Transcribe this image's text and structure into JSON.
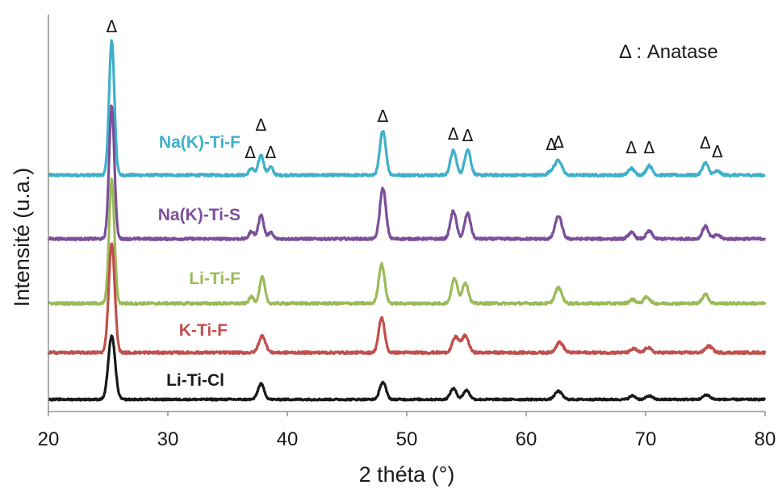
{
  "chart_data": {
    "type": "line",
    "xlabel": "2 théta (°)",
    "ylabel": "Intensité (u.a.)",
    "xlim": [
      20,
      80
    ],
    "xticks": [
      20,
      30,
      40,
      50,
      60,
      70,
      80
    ],
    "grid": false,
    "annotation": "Δ : Anatase",
    "phase_marker": "Δ",
    "phase_peaks_2theta": [
      25.3,
      36.9,
      37.8,
      38.6,
      48.0,
      53.9,
      55.1,
      62.1,
      62.7,
      68.8,
      70.3,
      75.0,
      76.0
    ],
    "series": [
      {
        "name": "Na(K)-Ti-F",
        "color": "#3fb0c9",
        "baseline_offset": 4,
        "peaks": [
          {
            "x": 25.3,
            "height": 1.0,
            "width": 0.22
          },
          {
            "x": 37.0,
            "height": 0.05,
            "width": 0.2
          },
          {
            "x": 37.8,
            "height": 0.15,
            "width": 0.22
          },
          {
            "x": 38.6,
            "height": 0.06,
            "width": 0.2
          },
          {
            "x": 48.0,
            "height": 0.33,
            "width": 0.25
          },
          {
            "x": 53.9,
            "height": 0.18,
            "width": 0.25
          },
          {
            "x": 55.1,
            "height": 0.19,
            "width": 0.25
          },
          {
            "x": 62.1,
            "height": 0.03,
            "width": 0.25
          },
          {
            "x": 62.7,
            "height": 0.11,
            "width": 0.28
          },
          {
            "x": 68.8,
            "height": 0.05,
            "width": 0.25
          },
          {
            "x": 70.3,
            "height": 0.07,
            "width": 0.25
          },
          {
            "x": 75.0,
            "height": 0.09,
            "width": 0.25
          },
          {
            "x": 76.0,
            "height": 0.03,
            "width": 0.25
          }
        ]
      },
      {
        "name": "Na(K)-Ti-S",
        "color": "#7b4f9a",
        "baseline_offset": 3,
        "peaks": [
          {
            "x": 25.3,
            "height": 1.05,
            "width": 0.22
          },
          {
            "x": 37.0,
            "height": 0.06,
            "width": 0.2
          },
          {
            "x": 37.8,
            "height": 0.19,
            "width": 0.22
          },
          {
            "x": 38.6,
            "height": 0.05,
            "width": 0.2
          },
          {
            "x": 48.0,
            "height": 0.4,
            "width": 0.25
          },
          {
            "x": 53.9,
            "height": 0.22,
            "width": 0.25
          },
          {
            "x": 55.1,
            "height": 0.2,
            "width": 0.25
          },
          {
            "x": 62.7,
            "height": 0.18,
            "width": 0.28
          },
          {
            "x": 68.8,
            "height": 0.05,
            "width": 0.25
          },
          {
            "x": 70.3,
            "height": 0.06,
            "width": 0.25
          },
          {
            "x": 75.0,
            "height": 0.1,
            "width": 0.25
          },
          {
            "x": 76.0,
            "height": 0.03,
            "width": 0.25
          }
        ]
      },
      {
        "name": "Li-Ti-F",
        "color": "#9bbb59",
        "baseline_offset": 2,
        "peaks": [
          {
            "x": 25.3,
            "height": 0.95,
            "width": 0.22
          },
          {
            "x": 37.0,
            "height": 0.05,
            "width": 0.2
          },
          {
            "x": 37.9,
            "height": 0.2,
            "width": 0.22
          },
          {
            "x": 47.9,
            "height": 0.3,
            "width": 0.25
          },
          {
            "x": 54.0,
            "height": 0.19,
            "width": 0.25
          },
          {
            "x": 54.9,
            "height": 0.16,
            "width": 0.25
          },
          {
            "x": 62.7,
            "height": 0.12,
            "width": 0.28
          },
          {
            "x": 68.9,
            "height": 0.03,
            "width": 0.25
          },
          {
            "x": 70.1,
            "height": 0.05,
            "width": 0.25
          },
          {
            "x": 75.0,
            "height": 0.07,
            "width": 0.25
          }
        ]
      },
      {
        "name": "K-Ti-F",
        "color": "#c0504d",
        "baseline_offset": 1,
        "peaks": [
          {
            "x": 25.3,
            "height": 0.85,
            "width": 0.25
          },
          {
            "x": 37.9,
            "height": 0.13,
            "width": 0.28
          },
          {
            "x": 47.9,
            "height": 0.27,
            "width": 0.25
          },
          {
            "x": 54.1,
            "height": 0.12,
            "width": 0.28
          },
          {
            "x": 54.9,
            "height": 0.13,
            "width": 0.28
          },
          {
            "x": 62.8,
            "height": 0.08,
            "width": 0.3
          },
          {
            "x": 69.0,
            "height": 0.03,
            "width": 0.25
          },
          {
            "x": 70.2,
            "height": 0.04,
            "width": 0.25
          },
          {
            "x": 75.3,
            "height": 0.05,
            "width": 0.3
          }
        ]
      },
      {
        "name": "Li-Ti-Cl",
        "color": "#1a1a1a",
        "baseline_offset": 0,
        "peaks": [
          {
            "x": 25.3,
            "height": 0.7,
            "width": 0.28
          },
          {
            "x": 37.8,
            "height": 0.17,
            "width": 0.26
          },
          {
            "x": 48.0,
            "height": 0.19,
            "width": 0.26
          },
          {
            "x": 53.9,
            "height": 0.12,
            "width": 0.26
          },
          {
            "x": 55.0,
            "height": 0.1,
            "width": 0.26
          },
          {
            "x": 62.7,
            "height": 0.09,
            "width": 0.3
          },
          {
            "x": 68.9,
            "height": 0.04,
            "width": 0.25
          },
          {
            "x": 70.3,
            "height": 0.04,
            "width": 0.25
          },
          {
            "x": 75.1,
            "height": 0.05,
            "width": 0.28
          }
        ]
      }
    ]
  }
}
